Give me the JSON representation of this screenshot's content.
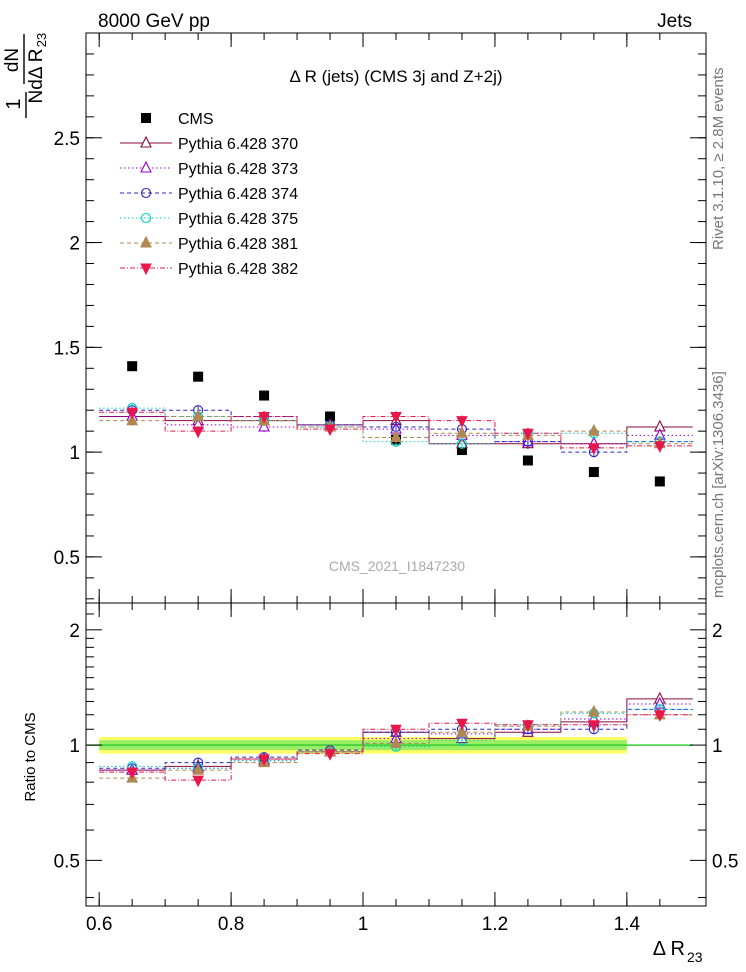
{
  "header": {
    "left": "8000 GeV pp",
    "right": "Jets"
  },
  "side_text": {
    "rivet": "Rivet 3.1.10, ≥ 2.8M events",
    "mcplots": "mcplots.cern.ch [arXiv:1306.3436]"
  },
  "colors": {
    "CMS": "#000000",
    "p370": "#8b0a3c",
    "p373": "#9400d3",
    "p374": "#2a24c8",
    "p375": "#00d0c8",
    "p381": "#b08850",
    "p382": "#e8174a",
    "band_outer": "#ffff66",
    "band_inner": "#99ee66",
    "ref_line": "#33cc33"
  },
  "chart_data": [
    {
      "type": "scatter",
      "title": "Δ R (jets) (CMS 3j and Z+2j)",
      "watermark": "CMS_2021_I1847230",
      "ylabel_num": "dN",
      "ylabel_den": "NdΔ R",
      "ylabel_den_sub": "23",
      "ylabel_prefix": "1",
      "xlim": [
        0.58,
        1.52
      ],
      "ylim": [
        0.28,
        3.0
      ],
      "yticks": [
        0.5,
        1,
        1.5,
        2,
        2.5
      ],
      "ytick_labels": [
        "0.5",
        "1",
        "1.5",
        "2",
        "2.5"
      ],
      "x": [
        0.65,
        0.75,
        0.85,
        0.95,
        1.05,
        1.15,
        1.25,
        1.35,
        1.45
      ],
      "series": [
        {
          "name": "CMS",
          "key": "CMS",
          "marker": "square",
          "dash": "none",
          "values": [
            1.41,
            1.36,
            1.27,
            1.17,
            1.06,
            1.01,
            0.96,
            0.905,
            0.86
          ]
        },
        {
          "name": "Pythia 6.428 370",
          "key": "p370",
          "marker": "triangle-open",
          "dash": "solid",
          "values": [
            1.17,
            1.15,
            1.15,
            1.13,
            1.15,
            1.04,
            1.04,
            1.04,
            1.12
          ]
        },
        {
          "name": "Pythia 6.428 373",
          "key": "p373",
          "marker": "triangle-open",
          "dash": "dotted",
          "values": [
            1.17,
            1.13,
            1.12,
            1.12,
            1.11,
            1.08,
            1.05,
            1.04,
            1.08
          ]
        },
        {
          "name": "Pythia 6.428 374",
          "key": "p374",
          "marker": "circle-open",
          "dash": "dashed",
          "values": [
            1.2,
            1.2,
            1.17,
            1.13,
            1.12,
            1.11,
            1.05,
            1.0,
            1.05
          ]
        },
        {
          "name": "Pythia 6.428 375",
          "key": "p375",
          "marker": "circle-open",
          "dash": "dotted",
          "values": [
            1.21,
            1.17,
            1.15,
            1.12,
            1.05,
            1.04,
            1.09,
            1.09,
            1.05
          ]
        },
        {
          "name": "Pythia 6.428 381",
          "key": "p381",
          "marker": "triangle-filled",
          "dash": "dashed",
          "values": [
            1.15,
            1.17,
            1.15,
            1.12,
            1.07,
            1.09,
            1.08,
            1.1,
            1.04
          ]
        },
        {
          "name": "Pythia 6.428 382",
          "key": "p382",
          "marker": "triangle-down-filled",
          "dash": "dashdot",
          "values": [
            1.19,
            1.1,
            1.17,
            1.11,
            1.17,
            1.15,
            1.09,
            1.02,
            1.03
          ]
        }
      ]
    },
    {
      "type": "scatter",
      "ylabel": "Ratio to CMS",
      "xlabel": "Δ R",
      "xlabel_sub": "23",
      "xlim": [
        0.58,
        1.52
      ],
      "ylim": [
        0.38,
        2.35
      ],
      "xticks": [
        0.6,
        0.8,
        1,
        1.2,
        1.4
      ],
      "xtick_labels": [
        "0.6",
        "0.8",
        "1",
        "1.2",
        "1.4"
      ],
      "yticks": [
        0.5,
        1,
        2
      ],
      "ytick_labels": [
        "0.5",
        "1",
        "2"
      ],
      "x": [
        0.65,
        0.75,
        0.85,
        0.95,
        1.05,
        1.15,
        1.25,
        1.35,
        1.45
      ],
      "band_outer": [
        0.95,
        1.05
      ],
      "band_inner": [
        0.97,
        1.03
      ],
      "series": [
        {
          "key": "p370",
          "marker": "triangle-open",
          "dash": "solid",
          "values": [
            0.86,
            0.88,
            0.92,
            0.96,
            1.08,
            1.04,
            1.08,
            1.15,
            1.32
          ]
        },
        {
          "key": "p373",
          "marker": "triangle-open",
          "dash": "dotted",
          "values": [
            0.86,
            0.87,
            0.91,
            0.96,
            1.04,
            1.07,
            1.1,
            1.17,
            1.28
          ]
        },
        {
          "key": "p374",
          "marker": "circle-open",
          "dash": "dashed",
          "values": [
            0.87,
            0.9,
            0.93,
            0.97,
            1.08,
            1.1,
            1.1,
            1.1,
            1.24
          ]
        },
        {
          "key": "p375",
          "marker": "circle-open",
          "dash": "dotted",
          "values": [
            0.88,
            0.87,
            0.91,
            0.96,
            0.99,
            1.03,
            1.13,
            1.21,
            1.24
          ]
        },
        {
          "key": "p381",
          "marker": "triangle-filled",
          "dash": "dashed",
          "values": [
            0.82,
            0.86,
            0.9,
            0.96,
            1.01,
            1.08,
            1.12,
            1.22,
            1.2
          ]
        },
        {
          "key": "p382",
          "marker": "triangle-down-filled",
          "dash": "dashdot",
          "values": [
            0.85,
            0.81,
            0.92,
            0.95,
            1.1,
            1.14,
            1.13,
            1.13,
            1.2
          ]
        }
      ]
    }
  ]
}
